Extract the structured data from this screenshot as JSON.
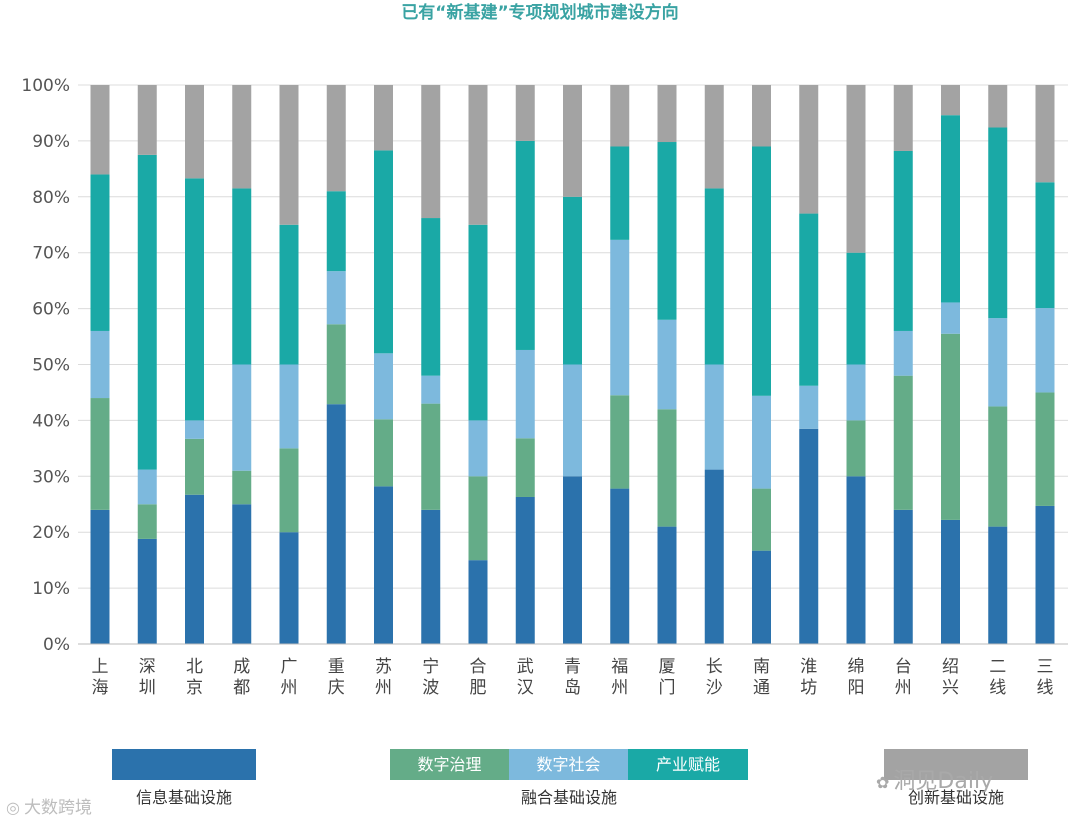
{
  "chart_data": {
    "type": "bar",
    "stacked": true,
    "percent": true,
    "title": "已有“新基建”专项规划城市建设方向",
    "title_color": "#3aa3a3",
    "categories": [
      "上海",
      "深圳",
      "北京",
      "成都",
      "广州",
      "重庆",
      "苏州",
      "宁波",
      "合肥",
      "武汉",
      "青岛",
      "福州",
      "厦门",
      "长沙",
      "南通",
      "淮坊",
      "绵阳",
      "台州",
      "绍兴",
      "二线",
      "三线"
    ],
    "y_ticks": [
      "0%",
      "10%",
      "20%",
      "30%",
      "40%",
      "50%",
      "60%",
      "70%",
      "80%",
      "90%",
      "100%"
    ],
    "ylim": [
      0,
      100
    ],
    "grid": true,
    "series": [
      {
        "name": "信息基础设施",
        "color": "#2b72ac",
        "values": [
          24,
          18.8,
          26.7,
          25,
          20,
          42.9,
          28.2,
          24,
          15,
          26.3,
          30,
          27.8,
          21,
          31.2,
          16.7,
          38.5,
          30,
          24,
          22.2,
          21,
          24.7
        ]
      },
      {
        "name": "数字治理",
        "color": "#64ac88",
        "values": [
          20,
          6.2,
          10,
          6,
          15,
          14.3,
          12,
          19,
          15,
          10.5,
          0,
          16.7,
          21,
          0,
          11.1,
          0,
          10,
          24,
          33.3,
          21.5,
          20.3
        ]
      },
      {
        "name": "数字社会",
        "color": "#7db9dd",
        "values": [
          12,
          6.2,
          3.3,
          19,
          15,
          9.5,
          11.8,
          5,
          10,
          15.8,
          20,
          27.8,
          16,
          18.8,
          16.6,
          7.7,
          10,
          8,
          5.6,
          15.8,
          15.1
        ]
      },
      {
        "name": "产业赋能",
        "color": "#1aa9a6",
        "values": [
          28,
          56.3,
          43.3,
          31.5,
          25,
          14.3,
          36.3,
          28.2,
          35,
          37.4,
          30,
          16.7,
          31.8,
          31.5,
          44.6,
          30.8,
          20,
          32.2,
          33.5,
          34.1,
          22.5
        ]
      },
      {
        "name": "创新基础设施",
        "color": "#a3a3a3",
        "values": [
          16,
          12.5,
          16.7,
          18.5,
          25,
          19,
          11.7,
          23.8,
          25,
          10,
          20,
          11,
          10.2,
          18.5,
          11,
          23,
          30,
          11.8,
          5.4,
          7.6,
          17.4
        ]
      }
    ],
    "legend": {
      "position": "bottom",
      "groups": [
        {
          "label": "信息基础设施",
          "items": [
            {
              "series": 0,
              "text": ""
            }
          ]
        },
        {
          "label": "融合基础设施",
          "items": [
            {
              "series": 1,
              "text": "数字治理"
            },
            {
              "series": 2,
              "text": "数字社会"
            },
            {
              "series": 3,
              "text": "产业赋能"
            }
          ]
        },
        {
          "label": "创新基础设施",
          "items": [
            {
              "series": 4,
              "text": ""
            }
          ]
        }
      ]
    }
  },
  "watermarks": {
    "left": "大数跨境",
    "right": "洞见Daily"
  }
}
